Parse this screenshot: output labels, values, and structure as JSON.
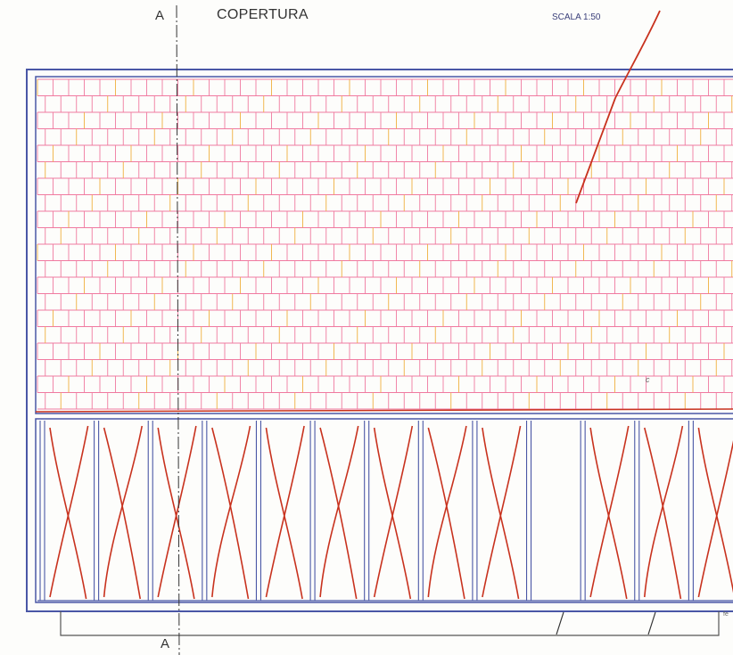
{
  "drawing": {
    "title": "COPERTURA",
    "scale": "SCALA 1:50",
    "section_marker_top": "A",
    "section_marker_bottom": "A",
    "note_mark": "c",
    "edge_mark": "fe"
  },
  "colors": {
    "frame": "#4a57a6",
    "tile_grid": "#f07aa0",
    "tile_accent": "#f0b040",
    "markup": "#c8321e",
    "section_line": "#333333",
    "base": "#555555"
  },
  "roof": {
    "tile_rows": 20,
    "panel_count": 13
  }
}
